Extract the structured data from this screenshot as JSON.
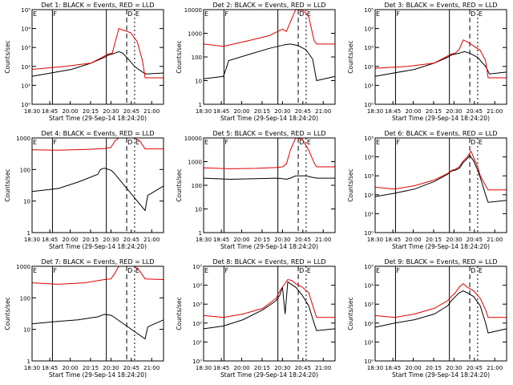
{
  "figure": {
    "black_color": "#000000",
    "red_color": "#e00000",
    "xlabel": "Start Time (29-Sep-14 18:24:20)",
    "ylabel": "Counts/sec",
    "x_ticks": [
      "18:30",
      "18:45",
      "20:00",
      "20:15",
      "20:30",
      "20:45",
      "21:00"
    ],
    "marker_letters": [
      "E",
      "F",
      "D",
      "E"
    ]
  },
  "chart_data": [
    {
      "type": "line",
      "title": "Det 1: BLACK = Events, RED = LLD",
      "y_scale": "log",
      "ylim": [
        1,
        100000
      ],
      "y_tick_values": [
        1,
        10,
        100,
        1000,
        10000,
        100000
      ],
      "y_tick_labels": [
        "10⁰",
        "10¹",
        "10²",
        "10³",
        "10⁴",
        "10⁵"
      ],
      "series": [
        {
          "role": "events",
          "x": [
            0,
            0.3,
            0.45,
            0.55,
            0.58,
            0.61,
            0.63,
            0.66,
            0.69,
            0.72,
            0.78,
            0.84,
            0.87,
            1.0
          ],
          "y": [
            30,
            70,
            150,
            300,
            400,
            450,
            500,
            600,
            500,
            300,
            100,
            50,
            40,
            45
          ]
        },
        {
          "role": "lld",
          "x": [
            0,
            0.25,
            0.45,
            0.55,
            0.58,
            0.61,
            0.64,
            0.66,
            0.7,
            0.75,
            0.8,
            0.84,
            0.86,
            1.0
          ],
          "y": [
            70,
            100,
            150,
            350,
            450,
            500,
            3000,
            10000,
            8000,
            6000,
            2000,
            200,
            25,
            25
          ]
        }
      ]
    },
    {
      "type": "line",
      "title": "Det 2: BLACK = Events, RED = LLD",
      "y_scale": "log",
      "ylim": [
        1,
        10000
      ],
      "y_tick_values": [
        1,
        10,
        100,
        1000,
        10000
      ],
      "y_tick_labels": [
        "1",
        "10",
        "100",
        "1000",
        "10000"
      ],
      "series": [
        {
          "role": "events",
          "x": [
            0,
            0.15,
            0.17,
            0.19,
            0.35,
            0.5,
            0.62,
            0.66,
            0.72,
            0.78,
            0.83,
            0.86,
            1.0
          ],
          "y": [
            12,
            15,
            30,
            70,
            130,
            230,
            330,
            350,
            300,
            200,
            80,
            10,
            15
          ]
        },
        {
          "role": "lld",
          "x": [
            0,
            0.15,
            0.35,
            0.5,
            0.6,
            0.63,
            0.66,
            0.7,
            0.76,
            0.8,
            0.84,
            0.86,
            1.0
          ],
          "y": [
            350,
            280,
            500,
            800,
            1500,
            1200,
            3000,
            10000,
            9000,
            5000,
            500,
            350,
            350
          ]
        }
      ]
    },
    {
      "type": "line",
      "title": "Det 3: BLACK = Events, RED = LLD",
      "y_scale": "log",
      "ylim": [
        1,
        100000
      ],
      "y_tick_values": [
        1,
        10,
        100,
        1000,
        10000,
        100000
      ],
      "y_tick_labels": [
        "10⁰",
        "10¹",
        "10²",
        "10³",
        "10⁴",
        "10⁵"
      ],
      "series": [
        {
          "role": "events",
          "x": [
            0,
            0.3,
            0.45,
            0.55,
            0.58,
            0.61,
            0.64,
            0.68,
            0.72,
            0.78,
            0.84,
            0.87,
            1.0
          ],
          "y": [
            30,
            70,
            150,
            300,
            400,
            450,
            500,
            600,
            500,
            300,
            100,
            40,
            50
          ]
        },
        {
          "role": "lld",
          "x": [
            0,
            0.25,
            0.45,
            0.55,
            0.58,
            0.61,
            0.64,
            0.67,
            0.7,
            0.75,
            0.8,
            0.84,
            0.86,
            1.0
          ],
          "y": [
            80,
            100,
            150,
            350,
            450,
            500,
            800,
            2500,
            2000,
            1200,
            700,
            200,
            25,
            25
          ]
        }
      ]
    },
    {
      "type": "line",
      "title": "Det 4: BLACK = Events, RED = LLD",
      "y_scale": "log",
      "ylim": [
        1,
        1000
      ],
      "y_tick_values": [
        1,
        10,
        100,
        1000
      ],
      "y_tick_labels": [
        "1",
        "10",
        "100",
        "1000"
      ],
      "series": [
        {
          "role": "events",
          "x": [
            0,
            0.2,
            0.35,
            0.5,
            0.52,
            0.55,
            0.6,
            0.62,
            0.86,
            0.88,
            1.0
          ],
          "y": [
            20,
            25,
            40,
            70,
            100,
            110,
            95,
            80,
            5,
            15,
            30
          ]
        },
        {
          "role": "lld",
          "x": [
            0,
            0.2,
            0.4,
            0.55,
            0.6,
            0.63,
            0.66,
            0.7,
            0.78,
            0.82,
            0.86,
            1.0
          ],
          "y": [
            420,
            410,
            430,
            460,
            500,
            800,
            1000,
            1000,
            1000,
            800,
            450,
            450
          ]
        }
      ]
    },
    {
      "type": "line",
      "title": "Det 5: BLACK = Events, RED = LLD",
      "y_scale": "log",
      "ylim": [
        1,
        10000
      ],
      "y_tick_values": [
        1,
        10,
        100,
        1000,
        10000
      ],
      "y_tick_labels": [
        "1",
        "10",
        "100",
        "1000",
        "10000"
      ],
      "series": [
        {
          "role": "events",
          "x": [
            0,
            0.2,
            0.4,
            0.55,
            0.6,
            0.63,
            0.66,
            0.7,
            0.78,
            0.82,
            0.86,
            1.0
          ],
          "y": [
            200,
            180,
            190,
            200,
            190,
            180,
            200,
            250,
            250,
            220,
            200,
            200
          ]
        },
        {
          "role": "lld",
          "x": [
            0,
            0.2,
            0.4,
            0.55,
            0.6,
            0.63,
            0.66,
            0.7,
            0.75,
            0.8,
            0.84,
            0.86,
            1.0
          ],
          "y": [
            550,
            500,
            520,
            560,
            600,
            800,
            3000,
            10000,
            9000,
            3000,
            900,
            600,
            600
          ]
        }
      ]
    },
    {
      "type": "line",
      "title": "Det 6: BLACK = Events, RED = LLD",
      "y_scale": "log",
      "ylim": [
        1,
        100000
      ],
      "y_tick_values": [
        1,
        10,
        100,
        1000,
        10000,
        100000
      ],
      "y_tick_labels": [
        "10⁰",
        "10¹",
        "10²",
        "10³",
        "10⁴",
        "10⁵"
      ],
      "series": [
        {
          "role": "events",
          "x": [
            0,
            0.15,
            0.3,
            0.45,
            0.55,
            0.58,
            0.61,
            0.64,
            0.67,
            0.7,
            0.72,
            0.75,
            0.78,
            0.8,
            0.84,
            0.86,
            1.0
          ],
          "y": [
            80,
            120,
            200,
            500,
            1200,
            1800,
            2000,
            2500,
            5000,
            8000,
            12000,
            6000,
            2000,
            800,
            100,
            40,
            50
          ]
        },
        {
          "role": "lld",
          "x": [
            0,
            0.15,
            0.3,
            0.45,
            0.55,
            0.58,
            0.61,
            0.64,
            0.67,
            0.7,
            0.73,
            0.75,
            0.78,
            0.8,
            0.84,
            0.86,
            1.0
          ],
          "y": [
            250,
            200,
            300,
            600,
            1300,
            1900,
            2200,
            3000,
            6000,
            10000,
            20000,
            9000,
            3000,
            1000,
            300,
            180,
            180
          ]
        }
      ]
    },
    {
      "type": "line",
      "title": "Det 7: BLACK = Events, RED = LLD",
      "y_scale": "log",
      "ylim": [
        1,
        1000
      ],
      "y_tick_values": [
        1,
        10,
        100,
        1000
      ],
      "y_tick_labels": [
        "1",
        "10",
        "100",
        "1000"
      ],
      "series": [
        {
          "role": "events",
          "x": [
            0,
            0.2,
            0.35,
            0.5,
            0.55,
            0.6,
            0.62,
            0.86,
            0.88,
            1.0
          ],
          "y": [
            15,
            18,
            20,
            25,
            30,
            28,
            25,
            5,
            12,
            20
          ]
        },
        {
          "role": "lld",
          "x": [
            0,
            0.2,
            0.4,
            0.55,
            0.6,
            0.63,
            0.66,
            0.7,
            0.78,
            0.82,
            0.86,
            1.0
          ],
          "y": [
            300,
            270,
            300,
            380,
            400,
            600,
            1000,
            1000,
            1000,
            700,
            400,
            380
          ]
        }
      ]
    },
    {
      "type": "line",
      "title": "Det 8: BLACK = Events, RED = LLD",
      "y_scale": "log",
      "ylim": [
        1,
        100000
      ],
      "y_tick_values": [
        1,
        10,
        100,
        1000,
        10000,
        100000
      ],
      "y_tick_labels": [
        "10⁰",
        "10¹",
        "10²",
        "10³",
        "10⁴",
        "10⁵"
      ],
      "series": [
        {
          "role": "events",
          "x": [
            0,
            0.15,
            0.3,
            0.45,
            0.55,
            0.58,
            0.6,
            0.62,
            0.64,
            0.66,
            0.7,
            0.75,
            0.8,
            0.84,
            0.86,
            1.0
          ],
          "y": [
            50,
            70,
            150,
            500,
            1500,
            3000,
            8000,
            300,
            15000,
            12000,
            8000,
            3000,
            800,
            100,
            40,
            50
          ]
        },
        {
          "role": "lld",
          "x": [
            0,
            0.15,
            0.3,
            0.45,
            0.55,
            0.58,
            0.61,
            0.64,
            0.67,
            0.7,
            0.75,
            0.8,
            0.84,
            0.86,
            1.0
          ],
          "y": [
            250,
            200,
            300,
            600,
            2000,
            5000,
            10000,
            20000,
            18000,
            12000,
            8000,
            4000,
            500,
            200,
            200
          ]
        }
      ]
    },
    {
      "type": "line",
      "title": "Det 9: BLACK = Events, RED = LLD",
      "y_scale": "log",
      "ylim": [
        1,
        100000
      ],
      "y_tick_values": [
        1,
        10,
        100,
        1000,
        10000,
        100000
      ],
      "y_tick_labels": [
        "10⁰",
        "10¹",
        "10²",
        "10³",
        "10⁴",
        "10⁵"
      ],
      "series": [
        {
          "role": "events",
          "x": [
            0,
            0.15,
            0.3,
            0.45,
            0.55,
            0.58,
            0.61,
            0.64,
            0.67,
            0.7,
            0.75,
            0.8,
            0.84,
            0.86,
            1.0
          ],
          "y": [
            60,
            100,
            150,
            300,
            800,
            1500,
            2500,
            4000,
            5000,
            4000,
            2500,
            800,
            100,
            30,
            50
          ]
        },
        {
          "role": "lld",
          "x": [
            0,
            0.15,
            0.3,
            0.45,
            0.55,
            0.58,
            0.61,
            0.64,
            0.67,
            0.7,
            0.75,
            0.8,
            0.84,
            0.86,
            1.0
          ],
          "y": [
            250,
            200,
            300,
            600,
            1500,
            2500,
            4000,
            8000,
            12000,
            8000,
            5000,
            2000,
            500,
            200,
            200
          ]
        }
      ]
    }
  ]
}
